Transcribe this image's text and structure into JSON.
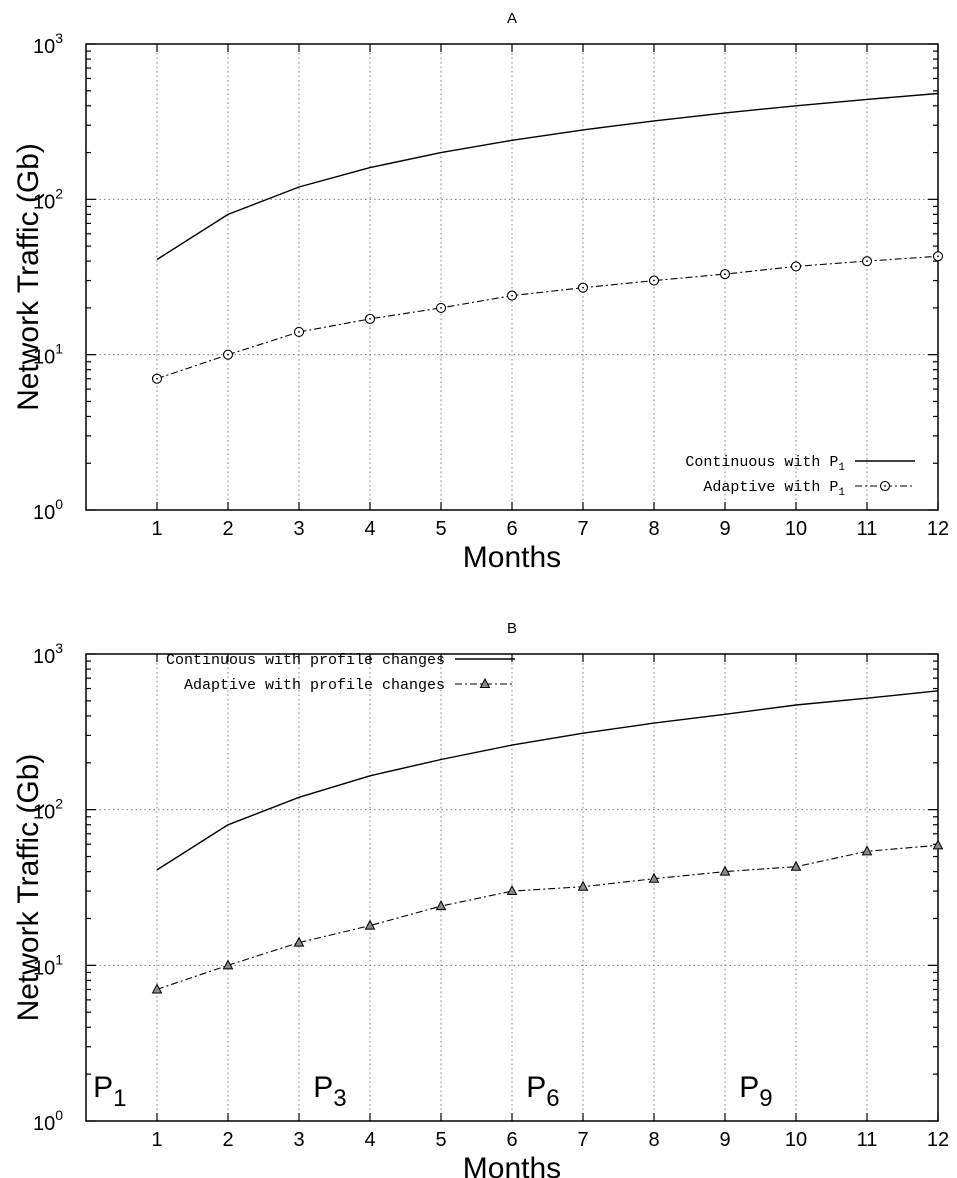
{
  "chart_data": [
    {
      "type": "line",
      "title": "A",
      "xlabel": "Months",
      "ylabel": "Network Traffic (Gb)",
      "yscale": "log",
      "ylim": [
        1,
        1000
      ],
      "xlim": [
        0,
        12
      ],
      "grid": true,
      "legend_position": "bottom-right",
      "x": [
        1,
        2,
        3,
        4,
        5,
        6,
        7,
        8,
        9,
        10,
        11,
        12
      ],
      "xticks": [
        "1",
        "2",
        "3",
        "4",
        "5",
        "6",
        "7",
        "8",
        "9",
        "10",
        "11",
        "12"
      ],
      "yticks": [
        {
          "value": 1,
          "base": "10",
          "exp": "0"
        },
        {
          "value": 10,
          "base": "10",
          "exp": "1"
        },
        {
          "value": 100,
          "base": "10",
          "exp": "2"
        },
        {
          "value": 1000,
          "base": "10",
          "exp": "3"
        }
      ],
      "series": [
        {
          "name": "Continuous with P",
          "name_sub": "1",
          "style": "solid",
          "marker": "none",
          "values": [
            41,
            80,
            120,
            160,
            200,
            240,
            280,
            320,
            360,
            400,
            440,
            480
          ]
        },
        {
          "name": "Adaptive with P",
          "name_sub": "1",
          "style": "dash-dot",
          "marker": "circle",
          "values": [
            7,
            10,
            14,
            17,
            20,
            24,
            27,
            30,
            33,
            37,
            40,
            43
          ]
        }
      ],
      "annotations": []
    },
    {
      "type": "line",
      "title": "B",
      "xlabel": "Months",
      "ylabel": "Network Traffic (Gb)",
      "yscale": "log",
      "ylim": [
        1,
        1000
      ],
      "xlim": [
        0,
        12
      ],
      "grid": true,
      "legend_position": "top-left",
      "x": [
        1,
        2,
        3,
        4,
        5,
        6,
        7,
        8,
        9,
        10,
        11,
        12
      ],
      "xticks": [
        "1",
        "2",
        "3",
        "4",
        "5",
        "6",
        "7",
        "8",
        "9",
        "10",
        "11",
        "12"
      ],
      "yticks": [
        {
          "value": 1,
          "base": "10",
          "exp": "0"
        },
        {
          "value": 10,
          "base": "10",
          "exp": "1"
        },
        {
          "value": 100,
          "base": "10",
          "exp": "2"
        },
        {
          "value": 1000,
          "base": "10",
          "exp": "3"
        }
      ],
      "series": [
        {
          "name": "Continuous with profile changes",
          "name_sub": "",
          "style": "solid",
          "marker": "none",
          "values": [
            41,
            80,
            120,
            165,
            210,
            260,
            310,
            360,
            410,
            470,
            520,
            580
          ]
        },
        {
          "name": "Adaptive with profile changes",
          "name_sub": "",
          "style": "dash-dot",
          "marker": "triangle",
          "values": [
            7,
            10,
            14,
            18,
            24,
            30,
            32,
            36,
            40,
            43,
            54,
            59
          ]
        }
      ],
      "annotations": [
        {
          "main": "P",
          "sub": "1",
          "x": 0.1,
          "y": 1.7
        },
        {
          "main": "P",
          "sub": "3",
          "x": 3.2,
          "y": 1.7
        },
        {
          "main": "P",
          "sub": "6",
          "x": 6.2,
          "y": 1.7
        },
        {
          "main": "P",
          "sub": "9",
          "x": 9.2,
          "y": 1.7
        }
      ]
    }
  ]
}
